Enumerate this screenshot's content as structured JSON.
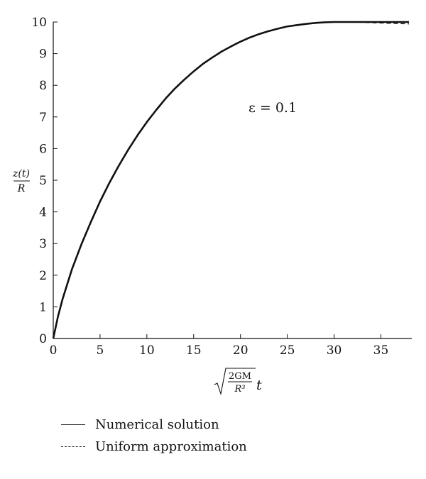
{
  "chart_data": {
    "type": "line",
    "annotation": "ε = 0.1",
    "ylabel": {
      "numerator": "z(t)",
      "denominator": "R"
    },
    "xlabel": {
      "numerator": "2GM",
      "denominator": "R³",
      "suffix": "t"
    },
    "xlim": [
      0,
      38.3
    ],
    "ylim": [
      0,
      10
    ],
    "x_ticks": [
      0,
      5,
      10,
      15,
      20,
      25,
      30,
      35
    ],
    "y_ticks": [
      0,
      1,
      2,
      3,
      4,
      5,
      6,
      7,
      8,
      9,
      10
    ],
    "grid": false,
    "legend_position": "bottom-left",
    "series": [
      {
        "name": "Numerical solution",
        "style": "solid",
        "x": [
          0,
          0.5,
          1,
          2,
          3,
          4,
          5,
          6,
          7,
          8,
          9,
          10,
          11,
          12,
          13,
          14,
          15,
          16,
          17,
          18,
          19,
          20,
          21,
          22,
          23,
          24,
          25,
          26,
          27,
          28,
          29,
          30,
          31,
          32,
          33,
          34,
          35,
          36,
          37,
          38
        ],
        "y": [
          0,
          0.69,
          1.25,
          2.19,
          2.97,
          3.67,
          4.33,
          4.92,
          5.46,
          5.96,
          6.42,
          6.84,
          7.22,
          7.58,
          7.9,
          8.18,
          8.44,
          8.68,
          8.88,
          9.07,
          9.23,
          9.38,
          9.51,
          9.62,
          9.71,
          9.79,
          9.86,
          9.9,
          9.94,
          9.97,
          9.99,
          10.0,
          10.0,
          10.0,
          10.0,
          10.0,
          10.0,
          10.0,
          10.0,
          10.0
        ]
      },
      {
        "name": "Uniform approximation",
        "style": "dashed",
        "x": [
          0,
          0.5,
          1,
          2,
          3,
          4,
          5,
          6,
          7,
          8,
          9,
          10,
          11,
          12,
          13,
          14,
          15,
          16,
          17,
          18,
          19,
          20,
          21,
          22,
          23,
          24,
          25,
          26,
          27,
          28,
          29,
          30,
          31,
          32,
          33,
          34,
          35,
          36,
          37,
          38
        ],
        "y": [
          0,
          0.69,
          1.25,
          2.19,
          2.97,
          3.67,
          4.33,
          4.92,
          5.46,
          5.96,
          6.42,
          6.84,
          7.22,
          7.58,
          7.9,
          8.18,
          8.44,
          8.68,
          8.88,
          9.07,
          9.23,
          9.38,
          9.51,
          9.62,
          9.71,
          9.79,
          9.86,
          9.9,
          9.94,
          9.97,
          9.99,
          10.0,
          10.0,
          10.0,
          9.99,
          9.98,
          9.97,
          9.96,
          9.95,
          9.94
        ]
      }
    ]
  }
}
